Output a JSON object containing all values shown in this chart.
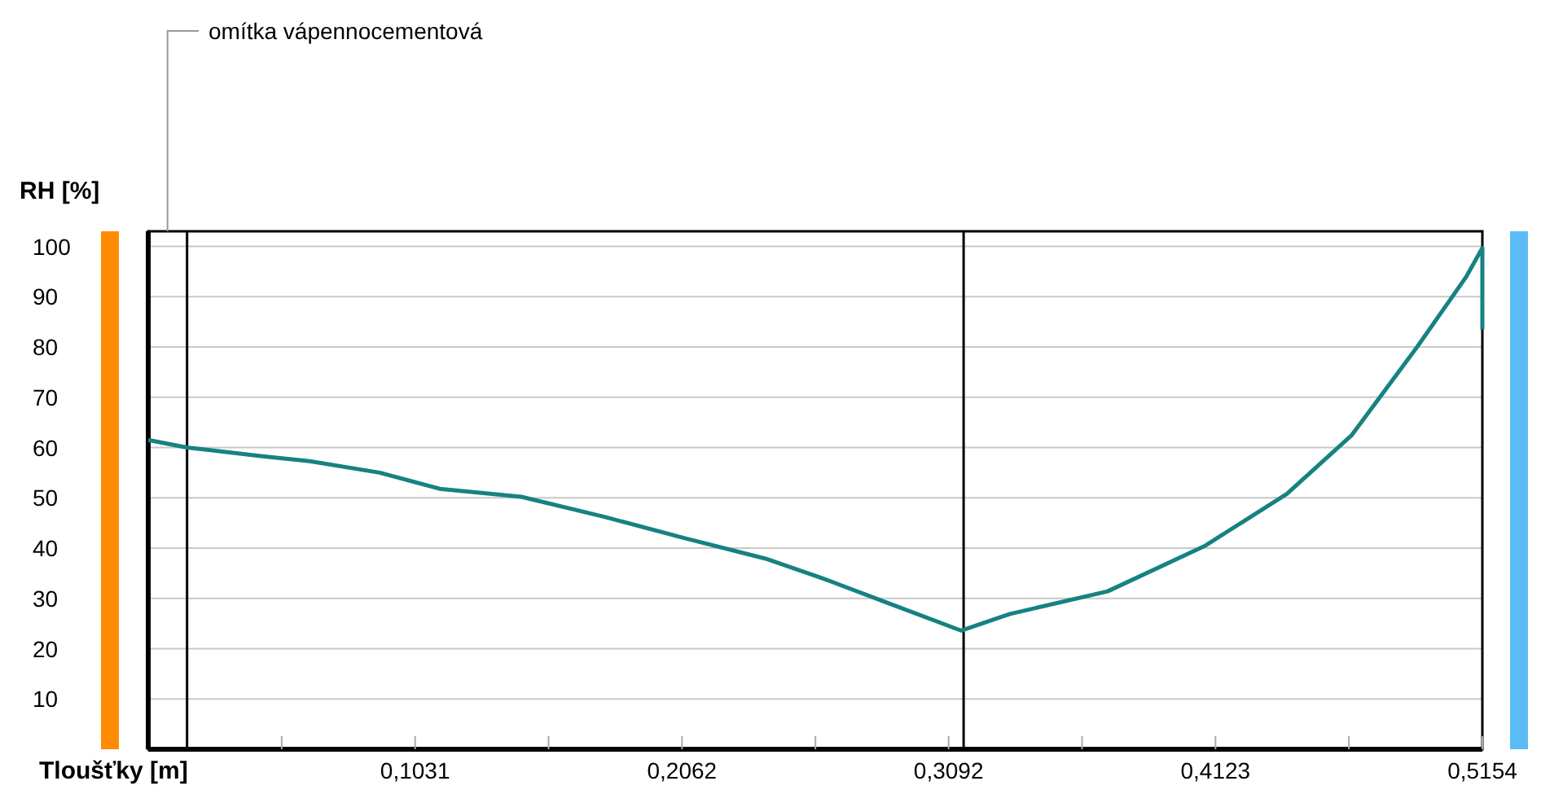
{
  "chart_data": {
    "type": "line",
    "xlabel": "Tloušťky [m]",
    "ylabel": "RH [%]",
    "annotations": [
      "omítka vápennocementová"
    ],
    "x": [
      0,
      0.015,
      0.0434,
      0.0623,
      0.0894,
      0.1126,
      0.1441,
      0.1756,
      0.207,
      0.2385,
      0.2605,
      0.2857,
      0.314,
      0.3329,
      0.3706,
      0.4084,
      0.4399,
      0.465,
      0.4902,
      0.5091,
      0.5154,
      0.5154
    ],
    "series": [
      {
        "color": "#168282",
        "values": [
          61.5,
          60,
          58.3,
          57.3,
          55,
          51.8,
          50.2,
          46.3,
          42,
          37.9,
          34,
          29.1,
          23.6,
          26.9,
          31.4,
          40.5,
          50.8,
          62.5,
          80,
          93.9,
          99.7,
          83.5
        ]
      }
    ],
    "xlim": [
      0,
      0.5154
    ],
    "ylim": [
      0,
      103
    ],
    "xticks": [
      {
        "value": 0.05155,
        "label": null
      },
      {
        "value": 0.1031,
        "label": "0,1031"
      },
      {
        "value": 0.15465,
        "label": null
      },
      {
        "value": 0.2062,
        "label": "0,2062"
      },
      {
        "value": 0.25775,
        "label": null
      },
      {
        "value": 0.3092,
        "label": "0,3092"
      },
      {
        "value": 0.36075,
        "label": null
      },
      {
        "value": 0.4123,
        "label": "0,4123"
      },
      {
        "value": 0.46385,
        "label": null
      },
      {
        "value": 0.5154,
        "label": "0,5154"
      }
    ],
    "yticks": [
      10,
      20,
      30,
      40,
      50,
      60,
      70,
      80,
      90,
      100
    ],
    "grid": "y",
    "marker": "none",
    "line_style": "solid",
    "ref_lines": [
      {
        "axis": "x",
        "value": 0.015,
        "color": "#000000"
      },
      {
        "axis": "x",
        "value": 0.315,
        "color": "#000000"
      }
    ]
  }
}
